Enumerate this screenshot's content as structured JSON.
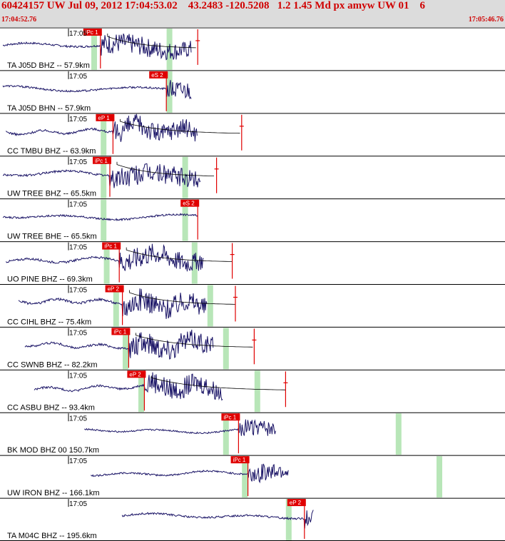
{
  "header": {
    "title": "60424157 UW Jul 09, 2012 17:04:53.02    43.2483 -120.5208   1.2 1.45 Md px amyw UW 01    6",
    "time_start": "17:04:52.76",
    "time_end": "17:05:46.76"
  },
  "colors": {
    "header_text": "#d00000",
    "trace": "#1a1466",
    "pick_box": "#e00000",
    "window": "#b8e6b8"
  },
  "traces": [
    {
      "label": "TA J05D BHZ -- 57.9km",
      "time": "17:05",
      "pick": "iPc 1",
      "pick_t": 0.32,
      "coda_t": 0.63,
      "green": [
        0.3,
        0.54
      ],
      "start": 0.0,
      "end": 0.61,
      "amp": 0.75,
      "freq": 1.4
    },
    {
      "label": "TA J05D BHN -- 57.9km",
      "time": "17:05",
      "pick": "eS 2",
      "pick_t": 0.53,
      "coda_t": null,
      "green": [
        0.54
      ],
      "start": 0.0,
      "end": 0.61,
      "amp": 0.7,
      "freq": 1.2
    },
    {
      "label": "CC TMBU BHZ -- 63.9km",
      "time": "17:05",
      "pick": "eP 1",
      "pick_t": 0.36,
      "coda_t": 0.77,
      "green": [
        0.33
      ],
      "start": 0.01,
      "end": 0.63,
      "amp": 0.8,
      "freq": 3.0
    },
    {
      "label": "UW TREE BHZ -- 65.5km",
      "time": "17:05",
      "pick": "iPc 1",
      "pick_t": 0.35,
      "coda_t": 0.69,
      "green": [
        0.33,
        0.59
      ],
      "start": 0.0,
      "end": 0.64,
      "amp": 0.8,
      "freq": 1.6
    },
    {
      "label": "UW TREE BHE -- 65.5km",
      "time": "17:05",
      "pick": "eS 2",
      "pick_t": 0.63,
      "coda_t": null,
      "green": [
        0.33,
        0.59
      ],
      "start": 0.0,
      "end": 0.63,
      "amp": 0.7,
      "freq": 1.3
    },
    {
      "label": "UO PINE BHZ -- 69.3km",
      "time": "17:05",
      "pick": "iPc 1",
      "pick_t": 0.38,
      "coda_t": 0.74,
      "green": [
        0.34,
        0.62
      ],
      "start": 0.01,
      "end": 0.65,
      "amp": 0.8,
      "freq": 2.2
    },
    {
      "label": "CC CIHL BHZ -- 75.4km",
      "time": "17:05",
      "pick": "eP 2",
      "pick_t": 0.39,
      "coda_t": 0.75,
      "green": [
        0.37,
        0.67
      ],
      "start": 0.05,
      "end": 0.66,
      "amp": 0.85,
      "freq": 3.2
    },
    {
      "label": "CC SWNB BHZ -- 82.2km",
      "time": "17:05",
      "pick": "iPc 1",
      "pick_t": 0.41,
      "coda_t": 0.81,
      "green": [
        0.4,
        0.72
      ],
      "start": 0.07,
      "end": 0.68,
      "amp": 0.85,
      "freq": 3.0
    },
    {
      "label": "CC ASBU BHZ -- 93.4km",
      "time": "17:05",
      "pick": "eP 2",
      "pick_t": 0.46,
      "coda_t": 0.91,
      "green": [
        0.45,
        0.82
      ],
      "start": 0.1,
      "end": 0.71,
      "amp": 0.8,
      "freq": 2.8
    },
    {
      "label": "BK MOD BHZ 00 150.7km",
      "time": "17:05",
      "pick": "iPc 1",
      "pick_t": 0.76,
      "coda_t": null,
      "green": [
        0.72,
        1.27
      ],
      "start": 0.26,
      "end": 0.88,
      "amp": 0.6,
      "freq": 1.6
    },
    {
      "label": "UW IRON BHZ -- 166.1km",
      "time": "17:05",
      "pick": "iPc 1",
      "pick_t": 0.79,
      "coda_t": null,
      "green": [
        0.78,
        1.4
      ],
      "start": 0.28,
      "end": 0.92,
      "amp": 0.65,
      "freq": 1.8
    },
    {
      "label": "TA M04C BHZ -- 195.6km",
      "time": "17:05",
      "pick": "eP 2",
      "pick_t": 0.97,
      "coda_t": null,
      "green": [
        0.92
      ],
      "start": 0.38,
      "end": 1.0,
      "amp": 0.7,
      "freq": 1.4
    }
  ]
}
